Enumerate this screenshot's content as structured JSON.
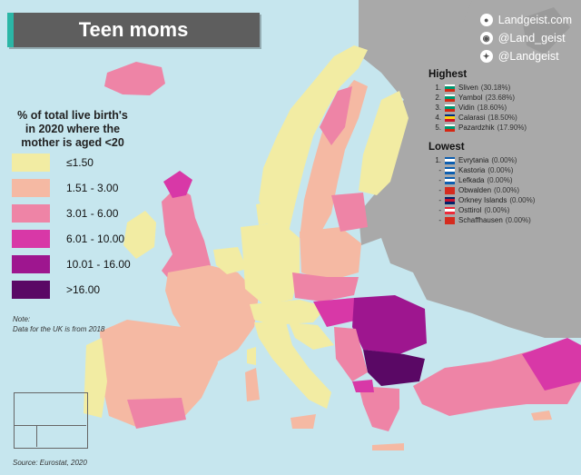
{
  "title": "Teen moms",
  "brand": {
    "site": "Landgeist.com",
    "instagram": "@Land_geist",
    "twitter": "@Landgeist"
  },
  "legend": {
    "title_lines": [
      "% of total live birth's",
      "in 2020 where the",
      "mother is aged <20"
    ],
    "bins": [
      {
        "label": "≤1.50",
        "color": "#f2eca3"
      },
      {
        "label": "1.51  -  3.00",
        "color": "#f5b9a3"
      },
      {
        "label": "3.01  -  6.00",
        "color": "#ee84a6"
      },
      {
        "label": "6.01  -  10.00",
        "color": "#d838a7"
      },
      {
        "label": "10.01  -  16.00",
        "color": "#9e168f"
      },
      {
        "label": ">16.00",
        "color": "#5a0865"
      }
    ]
  },
  "note": {
    "label": "Note:",
    "text": "Data for the UK is from 2018"
  },
  "source": "Source: Eurostat, 2020",
  "highest": {
    "heading": "Highest",
    "items": [
      {
        "rank": "1.",
        "name": "Sliven",
        "value": "(30.18%)",
        "flag": [
          "#ffffff",
          "#00966e",
          "#d62612"
        ]
      },
      {
        "rank": "2.",
        "name": "Yambol",
        "value": "(23.68%)",
        "flag": [
          "#ffffff",
          "#00966e",
          "#d62612"
        ]
      },
      {
        "rank": "3.",
        "name": "Vidin",
        "value": "(18.60%)",
        "flag": [
          "#ffffff",
          "#00966e",
          "#d62612"
        ]
      },
      {
        "rank": "4.",
        "name": "Calarasi",
        "value": "(18.50%)",
        "flag": [
          "#002b7f",
          "#fcd116",
          "#ce1126"
        ]
      },
      {
        "rank": "5.",
        "name": "Pazardzhik",
        "value": "(17.90%)",
        "flag": [
          "#ffffff",
          "#00966e",
          "#d62612"
        ]
      }
    ]
  },
  "lowest": {
    "heading": "Lowest",
    "items": [
      {
        "rank": "1.",
        "name": "Evrytania",
        "value": "(0.00%)",
        "flag": [
          "#0d5eaf",
          "#ffffff",
          "#0d5eaf"
        ]
      },
      {
        "rank": "-",
        "name": "Kastoria",
        "value": "(0.00%)",
        "flag": [
          "#0d5eaf",
          "#ffffff",
          "#0d5eaf"
        ]
      },
      {
        "rank": "-",
        "name": "Lefkada",
        "value": "(0.00%)",
        "flag": [
          "#0d5eaf",
          "#ffffff",
          "#0d5eaf"
        ]
      },
      {
        "rank": "-",
        "name": "Obwalden",
        "value": "(0.00%)",
        "flag": [
          "#d52b1e",
          "#d52b1e",
          "#d52b1e"
        ]
      },
      {
        "rank": "-",
        "name": "Orkney Islands",
        "value": "(0.00%)",
        "flag": [
          "#012169",
          "#c8102e",
          "#012169"
        ]
      },
      {
        "rank": "-",
        "name": "Osttirol",
        "value": "(0.00%)",
        "flag": [
          "#ed2939",
          "#ffffff",
          "#ed2939"
        ]
      },
      {
        "rank": "-",
        "name": "Schaffhausen",
        "value": "(0.00%)",
        "flag": [
          "#d52b1e",
          "#d52b1e",
          "#d52b1e"
        ]
      }
    ]
  },
  "colors": {
    "sea": "#c6e6ee",
    "nodata": "#a9a9a9",
    "title_bg": "#5e5e5e",
    "accent": "#2bb6a6"
  }
}
